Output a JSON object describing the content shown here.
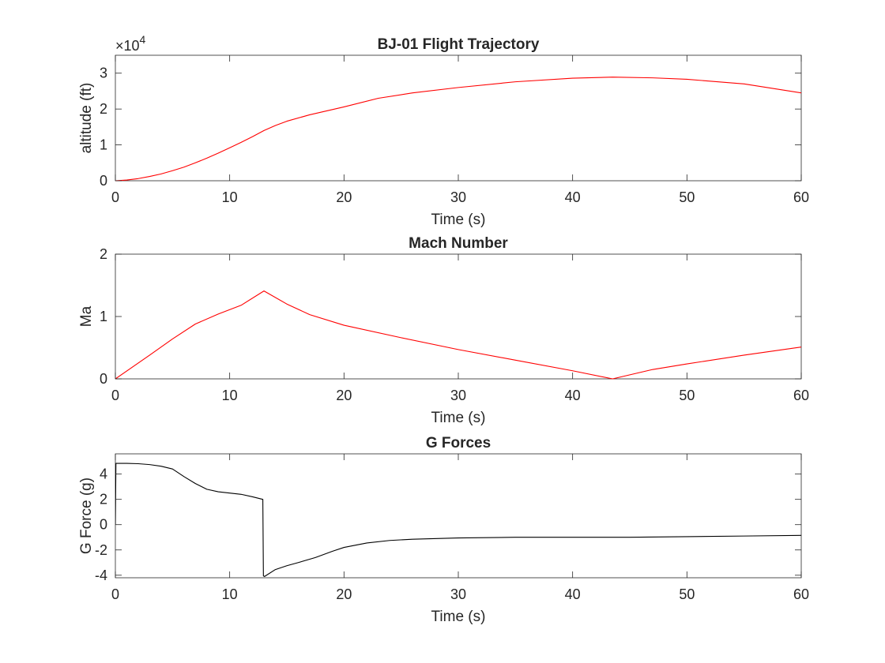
{
  "chart_data": [
    {
      "type": "line",
      "title": "BJ-01 Flight Trajectory",
      "xlabel": "Time (s)",
      "ylabel": "altitude (ft)",
      "exponent_label": "×10",
      "exponent_power": "4",
      "xlim": [
        0,
        60
      ],
      "ylim": [
        0,
        3.5
      ],
      "xticks": [
        0,
        10,
        20,
        30,
        40,
        50,
        60
      ],
      "yticks": [
        0,
        1,
        2,
        3
      ],
      "grid": false,
      "color": "#ff0000",
      "series": [
        {
          "x": [
            0,
            1,
            2,
            3,
            4,
            5,
            6,
            7,
            8,
            9,
            10,
            11,
            12,
            13,
            14,
            15,
            17,
            20,
            23,
            26,
            30,
            35,
            40,
            43.5,
            47,
            50,
            55,
            60
          ],
          "y": [
            0,
            0.02,
            0.06,
            0.12,
            0.19,
            0.28,
            0.38,
            0.5,
            0.63,
            0.77,
            0.92,
            1.07,
            1.23,
            1.4,
            1.54,
            1.66,
            1.84,
            2.06,
            2.3,
            2.45,
            2.6,
            2.76,
            2.86,
            2.89,
            2.87,
            2.83,
            2.7,
            2.45
          ]
        }
      ]
    },
    {
      "type": "line",
      "title": "Mach Number",
      "xlabel": "Time (s)",
      "ylabel": "Ma",
      "xlim": [
        0,
        60
      ],
      "ylim": [
        0,
        2
      ],
      "xticks": [
        0,
        10,
        20,
        30,
        40,
        50,
        60
      ],
      "yticks": [
        0,
        1,
        2
      ],
      "grid": false,
      "color": "#ff0000",
      "series": [
        {
          "x": [
            0,
            3,
            5,
            7,
            9,
            11,
            13,
            15,
            17,
            20,
            25,
            30,
            35,
            40,
            43.5,
            47,
            50,
            55,
            60
          ],
          "y": [
            0,
            0.38,
            0.64,
            0.88,
            1.04,
            1.18,
            1.41,
            1.2,
            1.03,
            0.86,
            0.66,
            0.47,
            0.3,
            0.13,
            0,
            0.15,
            0.24,
            0.38,
            0.51
          ]
        }
      ]
    },
    {
      "type": "line",
      "title": "G Forces",
      "xlabel": "Time (s)",
      "ylabel": "G Force (g)",
      "xlim": [
        0,
        60
      ],
      "ylim": [
        -4.2,
        5.6
      ],
      "xticks": [
        0,
        10,
        20,
        30,
        40,
        50,
        60
      ],
      "yticks": [
        -4,
        -2,
        0,
        2,
        4
      ],
      "grid": false,
      "color": "#000000",
      "series": [
        {
          "x": [
            0,
            0.05,
            1,
            2,
            3,
            4,
            5,
            6,
            7,
            8,
            9,
            10,
            11,
            12,
            12.9,
            12.95,
            13.05,
            14,
            15,
            16,
            17.5,
            19,
            20,
            22,
            24,
            26,
            30,
            35,
            40,
            45,
            50,
            55,
            60
          ],
          "y": [
            0,
            4.85,
            4.85,
            4.82,
            4.75,
            4.62,
            4.4,
            3.8,
            3.25,
            2.8,
            2.6,
            2.5,
            2.4,
            2.2,
            2.0,
            -4.05,
            -4.1,
            -3.55,
            -3.25,
            -3.0,
            -2.6,
            -2.1,
            -1.8,
            -1.45,
            -1.25,
            -1.15,
            -1.05,
            -1.0,
            -1.0,
            -1.0,
            -0.95,
            -0.9,
            -0.85
          ]
        }
      ]
    }
  ]
}
